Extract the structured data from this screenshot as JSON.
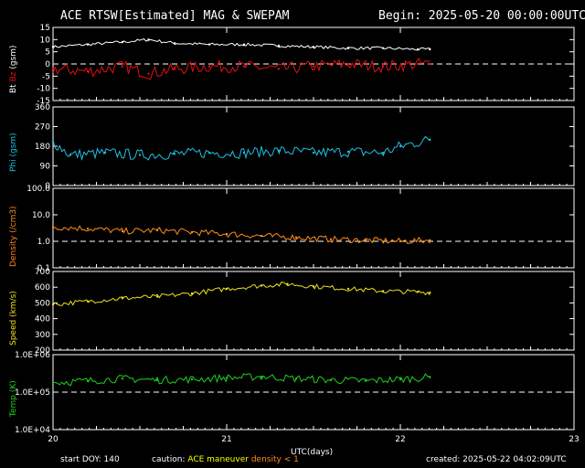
{
  "header": {
    "title": "ACE RTSW[Estimated] MAG & SWEPAM",
    "begin": "Begin: 2025-05-20 00:00:00UTC"
  },
  "footer": {
    "start_doy": "start DOY: 140",
    "caution_prefix": "caution:",
    "caution_maneuver": "ACE maneuver",
    "caution_density": "density < 1",
    "created": "created: 2025-05-22 04:02:09UTC"
  },
  "colors": {
    "background": "#000000",
    "axes": "#ffffff",
    "bt": "#ffffff",
    "bz": "#e01010",
    "phi": "#20c0e0",
    "density": "#ff8c1a",
    "speed": "#f0e020",
    "temp": "#20d020",
    "maneuver": "#ffff00",
    "density_warn": "#ff8c1a"
  },
  "chart_data": [
    {
      "type": "scatter",
      "panel": "mag",
      "ylabel_parts": [
        "Bt",
        "Bz",
        "(gsm)"
      ],
      "ylim": [
        -15,
        15
      ],
      "yticks": [
        "15",
        "10",
        "5",
        "0",
        "-5",
        "-10",
        "-15"
      ],
      "ref_line": 0,
      "series": [
        {
          "name": "Bt",
          "x": [
            20.0,
            20.2,
            20.4,
            20.55,
            20.7,
            20.9,
            21.1,
            21.3,
            21.5,
            21.7,
            21.9,
            22.1,
            22.17
          ],
          "y": [
            7,
            8,
            9,
            10,
            8.5,
            8,
            8,
            7.5,
            7,
            6.5,
            6.5,
            6,
            6
          ]
        },
        {
          "name": "Bz",
          "x": [
            20.0,
            20.2,
            20.4,
            20.55,
            20.7,
            20.9,
            21.1,
            21.3,
            21.5,
            21.7,
            21.9,
            22.1,
            22.17
          ],
          "y": [
            -2,
            -3,
            -1,
            -4,
            -2,
            -1,
            -1,
            -2,
            -1,
            0,
            -1,
            0,
            0
          ]
        }
      ]
    },
    {
      "type": "scatter",
      "panel": "phi",
      "ylabel": "Phi (gsm)",
      "ylim": [
        0,
        360
      ],
      "yticks": [
        "360",
        "270",
        "180",
        "90",
        "0"
      ],
      "series": [
        {
          "name": "Phi",
          "x": [
            20.0,
            20.1,
            20.3,
            20.5,
            20.7,
            20.9,
            21.1,
            21.3,
            21.5,
            21.7,
            21.9,
            22.0,
            22.17
          ],
          "y": [
            200,
            140,
            150,
            140,
            145,
            150,
            150,
            160,
            150,
            155,
            150,
            180,
            210
          ]
        }
      ]
    },
    {
      "type": "scatter",
      "panel": "density",
      "ylabel": "Density (/cm3)",
      "yscale": "log",
      "ylim": [
        0.1,
        100
      ],
      "yticks": [
        "100.0",
        "10.0",
        "1.0",
        "0.1"
      ],
      "ref_line": 1,
      "series": [
        {
          "name": "Density",
          "x": [
            20.0,
            20.2,
            20.4,
            20.6,
            20.8,
            21.0,
            21.2,
            21.4,
            21.6,
            21.8,
            22.0,
            22.17
          ],
          "y": [
            3.5,
            3.0,
            2.4,
            2.6,
            2.2,
            1.9,
            1.6,
            1.4,
            1.2,
            1.1,
            1.0,
            1.1
          ]
        }
      ]
    },
    {
      "type": "scatter",
      "panel": "speed",
      "ylabel": "Speed (km/s)",
      "ylim": [
        200,
        700
      ],
      "yticks": [
        "700",
        "600",
        "500",
        "400",
        "300",
        "200"
      ],
      "series": [
        {
          "name": "Speed",
          "x": [
            20.0,
            20.2,
            20.4,
            20.6,
            20.8,
            21.0,
            21.2,
            21.35,
            21.5,
            21.7,
            21.9,
            22.1,
            22.17
          ],
          "y": [
            490,
            510,
            530,
            540,
            560,
            590,
            610,
            620,
            605,
            590,
            575,
            570,
            565
          ]
        }
      ]
    },
    {
      "type": "scatter",
      "panel": "temp",
      "ylabel": "Temp (K)",
      "yscale": "log",
      "ylim": [
        10000,
        1000000
      ],
      "yticks": [
        "1.0E+06",
        "1.0E+05",
        "1.0E+04"
      ],
      "ref_line": 100000,
      "series": [
        {
          "name": "Temp",
          "x": [
            20.0,
            20.2,
            20.4,
            20.6,
            20.8,
            21.0,
            21.2,
            21.4,
            21.6,
            21.8,
            22.0,
            22.17
          ],
          "y": [
            180000,
            200000,
            230000,
            210000,
            220000,
            240000,
            260000,
            230000,
            210000,
            200000,
            220000,
            250000
          ]
        }
      ]
    }
  ],
  "x_axis": {
    "label": "UTC(days)",
    "xlim": [
      20,
      23
    ],
    "ticks": [
      "20",
      "21",
      "22",
      "23"
    ]
  }
}
